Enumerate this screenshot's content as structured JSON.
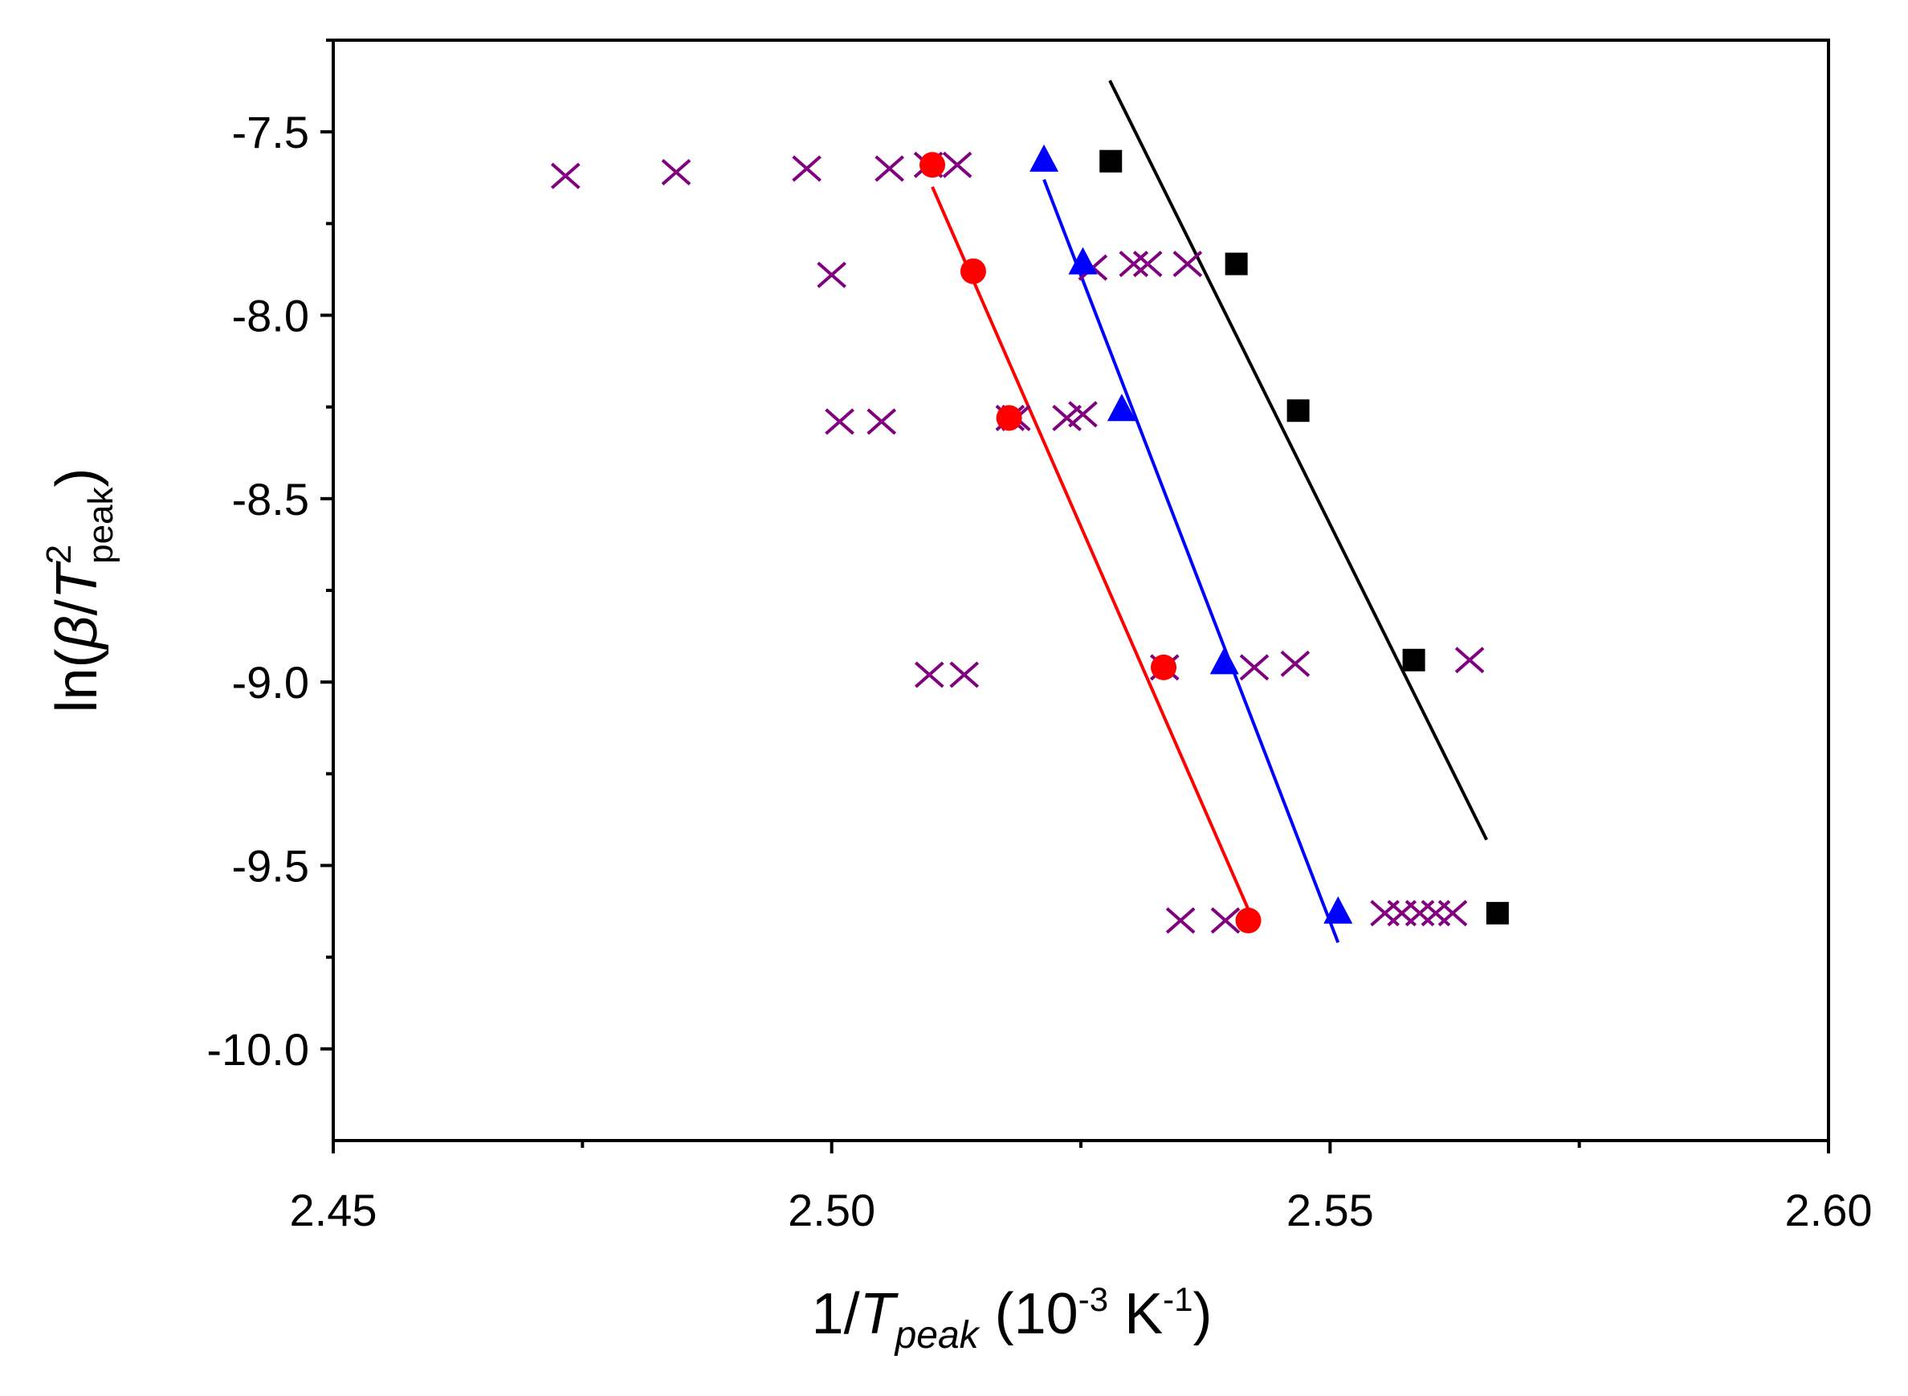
{
  "chart_data": {
    "type": "scatter",
    "title": "",
    "xlabel": {
      "prefix": "1/",
      "var": "T",
      "sub": "peak",
      "unit_open": " (10",
      "unit_exp1": "-3",
      "unit_mid": " K",
      "unit_exp2": "-1",
      "unit_close": ")"
    },
    "ylabel": {
      "prefix": "ln(",
      "beta": "β",
      "slash": "/",
      "var": "T",
      "sup": "2",
      "sub": "peak",
      "close": ")"
    },
    "xlim": [
      2.45,
      2.6
    ],
    "ylim": [
      -10.25,
      -7.25
    ],
    "x_ticks": [
      2.45,
      2.5,
      2.55,
      2.6
    ],
    "x_tick_labels": [
      "2.45",
      "2.50",
      "2.55",
      "2.60"
    ],
    "x_minor_ticks": [
      2.475,
      2.525,
      2.575
    ],
    "y_ticks": [
      -7.5,
      -8.0,
      -8.5,
      -9.0,
      -9.5,
      -10.0
    ],
    "y_tick_labels": [
      "-7.5",
      "-8.0",
      "-8.5",
      "-9.0",
      "-9.5",
      "-10.0"
    ],
    "y_minor_ticks": [
      -7.25,
      -7.75,
      -8.25,
      -8.75,
      -9.25,
      -9.75
    ],
    "series": [
      {
        "name": "square",
        "marker": "square",
        "color": "#000000",
        "points": [
          [
            2.528,
            -7.58
          ],
          [
            2.5406,
            -7.86
          ],
          [
            2.5468,
            -8.26
          ],
          [
            2.5584,
            -8.94
          ],
          [
            2.5668,
            -9.63
          ]
        ],
        "fit_line": [
          [
            2.5279,
            -7.36
          ],
          [
            2.5657,
            -9.43
          ]
        ]
      },
      {
        "name": "circle",
        "marker": "circle",
        "color": "#ff0000",
        "points": [
          [
            2.5101,
            -7.59
          ],
          [
            2.5142,
            -7.88
          ],
          [
            2.5178,
            -8.28
          ],
          [
            2.5333,
            -8.96
          ],
          [
            2.5418,
            -9.65
          ]
        ],
        "fit_line": [
          [
            2.5101,
            -7.65
          ],
          [
            2.5418,
            -9.62
          ]
        ]
      },
      {
        "name": "triangle",
        "marker": "triangle",
        "color": "#0000ff",
        "points": [
          [
            2.5213,
            -7.58
          ],
          [
            2.5252,
            -7.86
          ],
          [
            2.5291,
            -8.26
          ],
          [
            2.5394,
            -8.95
          ],
          [
            2.5508,
            -9.63
          ]
        ],
        "fit_line": [
          [
            2.5213,
            -7.63
          ],
          [
            2.5508,
            -9.71
          ]
        ]
      },
      {
        "name": "cross",
        "marker": "cross",
        "color": "#800080",
        "points": [
          [
            2.4733,
            -7.62
          ],
          [
            2.4844,
            -7.61
          ],
          [
            2.4975,
            -7.6
          ],
          [
            2.5058,
            -7.6
          ],
          [
            2.5097,
            -7.59
          ],
          [
            2.5126,
            -7.59
          ],
          [
            2.5,
            -7.89
          ],
          [
            2.5262,
            -7.87
          ],
          [
            2.5303,
            -7.86
          ],
          [
            2.5317,
            -7.86
          ],
          [
            2.5357,
            -7.86
          ],
          [
            2.5008,
            -8.29
          ],
          [
            2.505,
            -8.29
          ],
          [
            2.5179,
            -8.28
          ],
          [
            2.5185,
            -8.28
          ],
          [
            2.5236,
            -8.28
          ],
          [
            2.5252,
            -8.27
          ],
          [
            2.5098,
            -8.98
          ],
          [
            2.5133,
            -8.98
          ],
          [
            2.5334,
            -8.96
          ],
          [
            2.5424,
            -8.96
          ],
          [
            2.5465,
            -8.95
          ],
          [
            2.564,
            -8.94
          ],
          [
            2.535,
            -9.65
          ],
          [
            2.5395,
            -9.65
          ],
          [
            2.5555,
            -9.63
          ],
          [
            2.5572,
            -9.63
          ],
          [
            2.559,
            -9.63
          ],
          [
            2.5606,
            -9.63
          ],
          [
            2.5623,
            -9.63
          ]
        ]
      }
    ]
  }
}
